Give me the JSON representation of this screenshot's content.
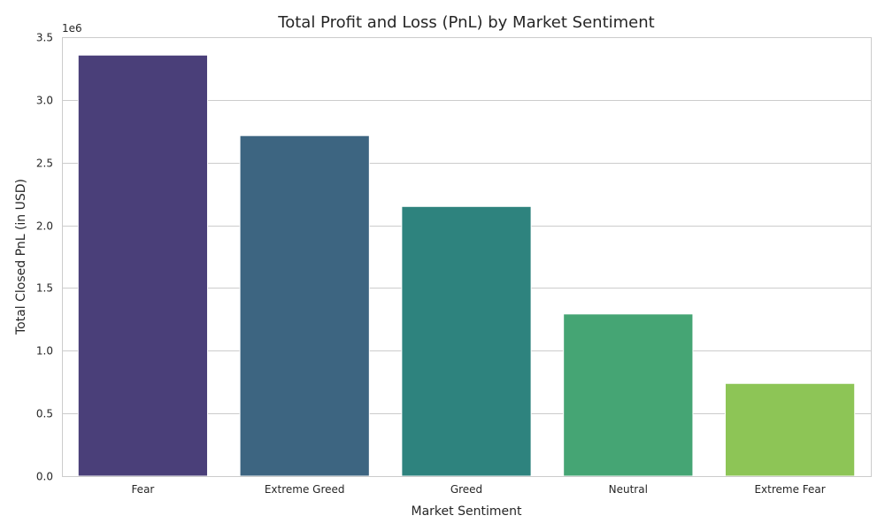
{
  "chart_data": {
    "type": "bar",
    "title": "Total Profit and Loss (PnL) by Market Sentiment",
    "xlabel": "Market Sentiment",
    "ylabel": "Total Closed PnL (in USD)",
    "offset_text": "1e6",
    "categories": [
      "Fear",
      "Extreme Greed",
      "Greed",
      "Neutral",
      "Extreme Fear"
    ],
    "values": [
      3357155,
      2715171,
      2150129,
      1292921,
      739110
    ],
    "colors": [
      "#4a3f79",
      "#3d6581",
      "#2e837e",
      "#45a574",
      "#8dc556"
    ],
    "ylim": [
      0,
      3500000
    ],
    "yticks": [
      0,
      500000,
      1000000,
      1500000,
      2000000,
      2500000,
      3000000,
      3500000
    ],
    "ytick_labels": [
      "0.0",
      "0.5",
      "1.0",
      "1.5",
      "2.0",
      "2.5",
      "3.0",
      "3.5"
    ],
    "grid": "y-major",
    "legend": "none"
  }
}
